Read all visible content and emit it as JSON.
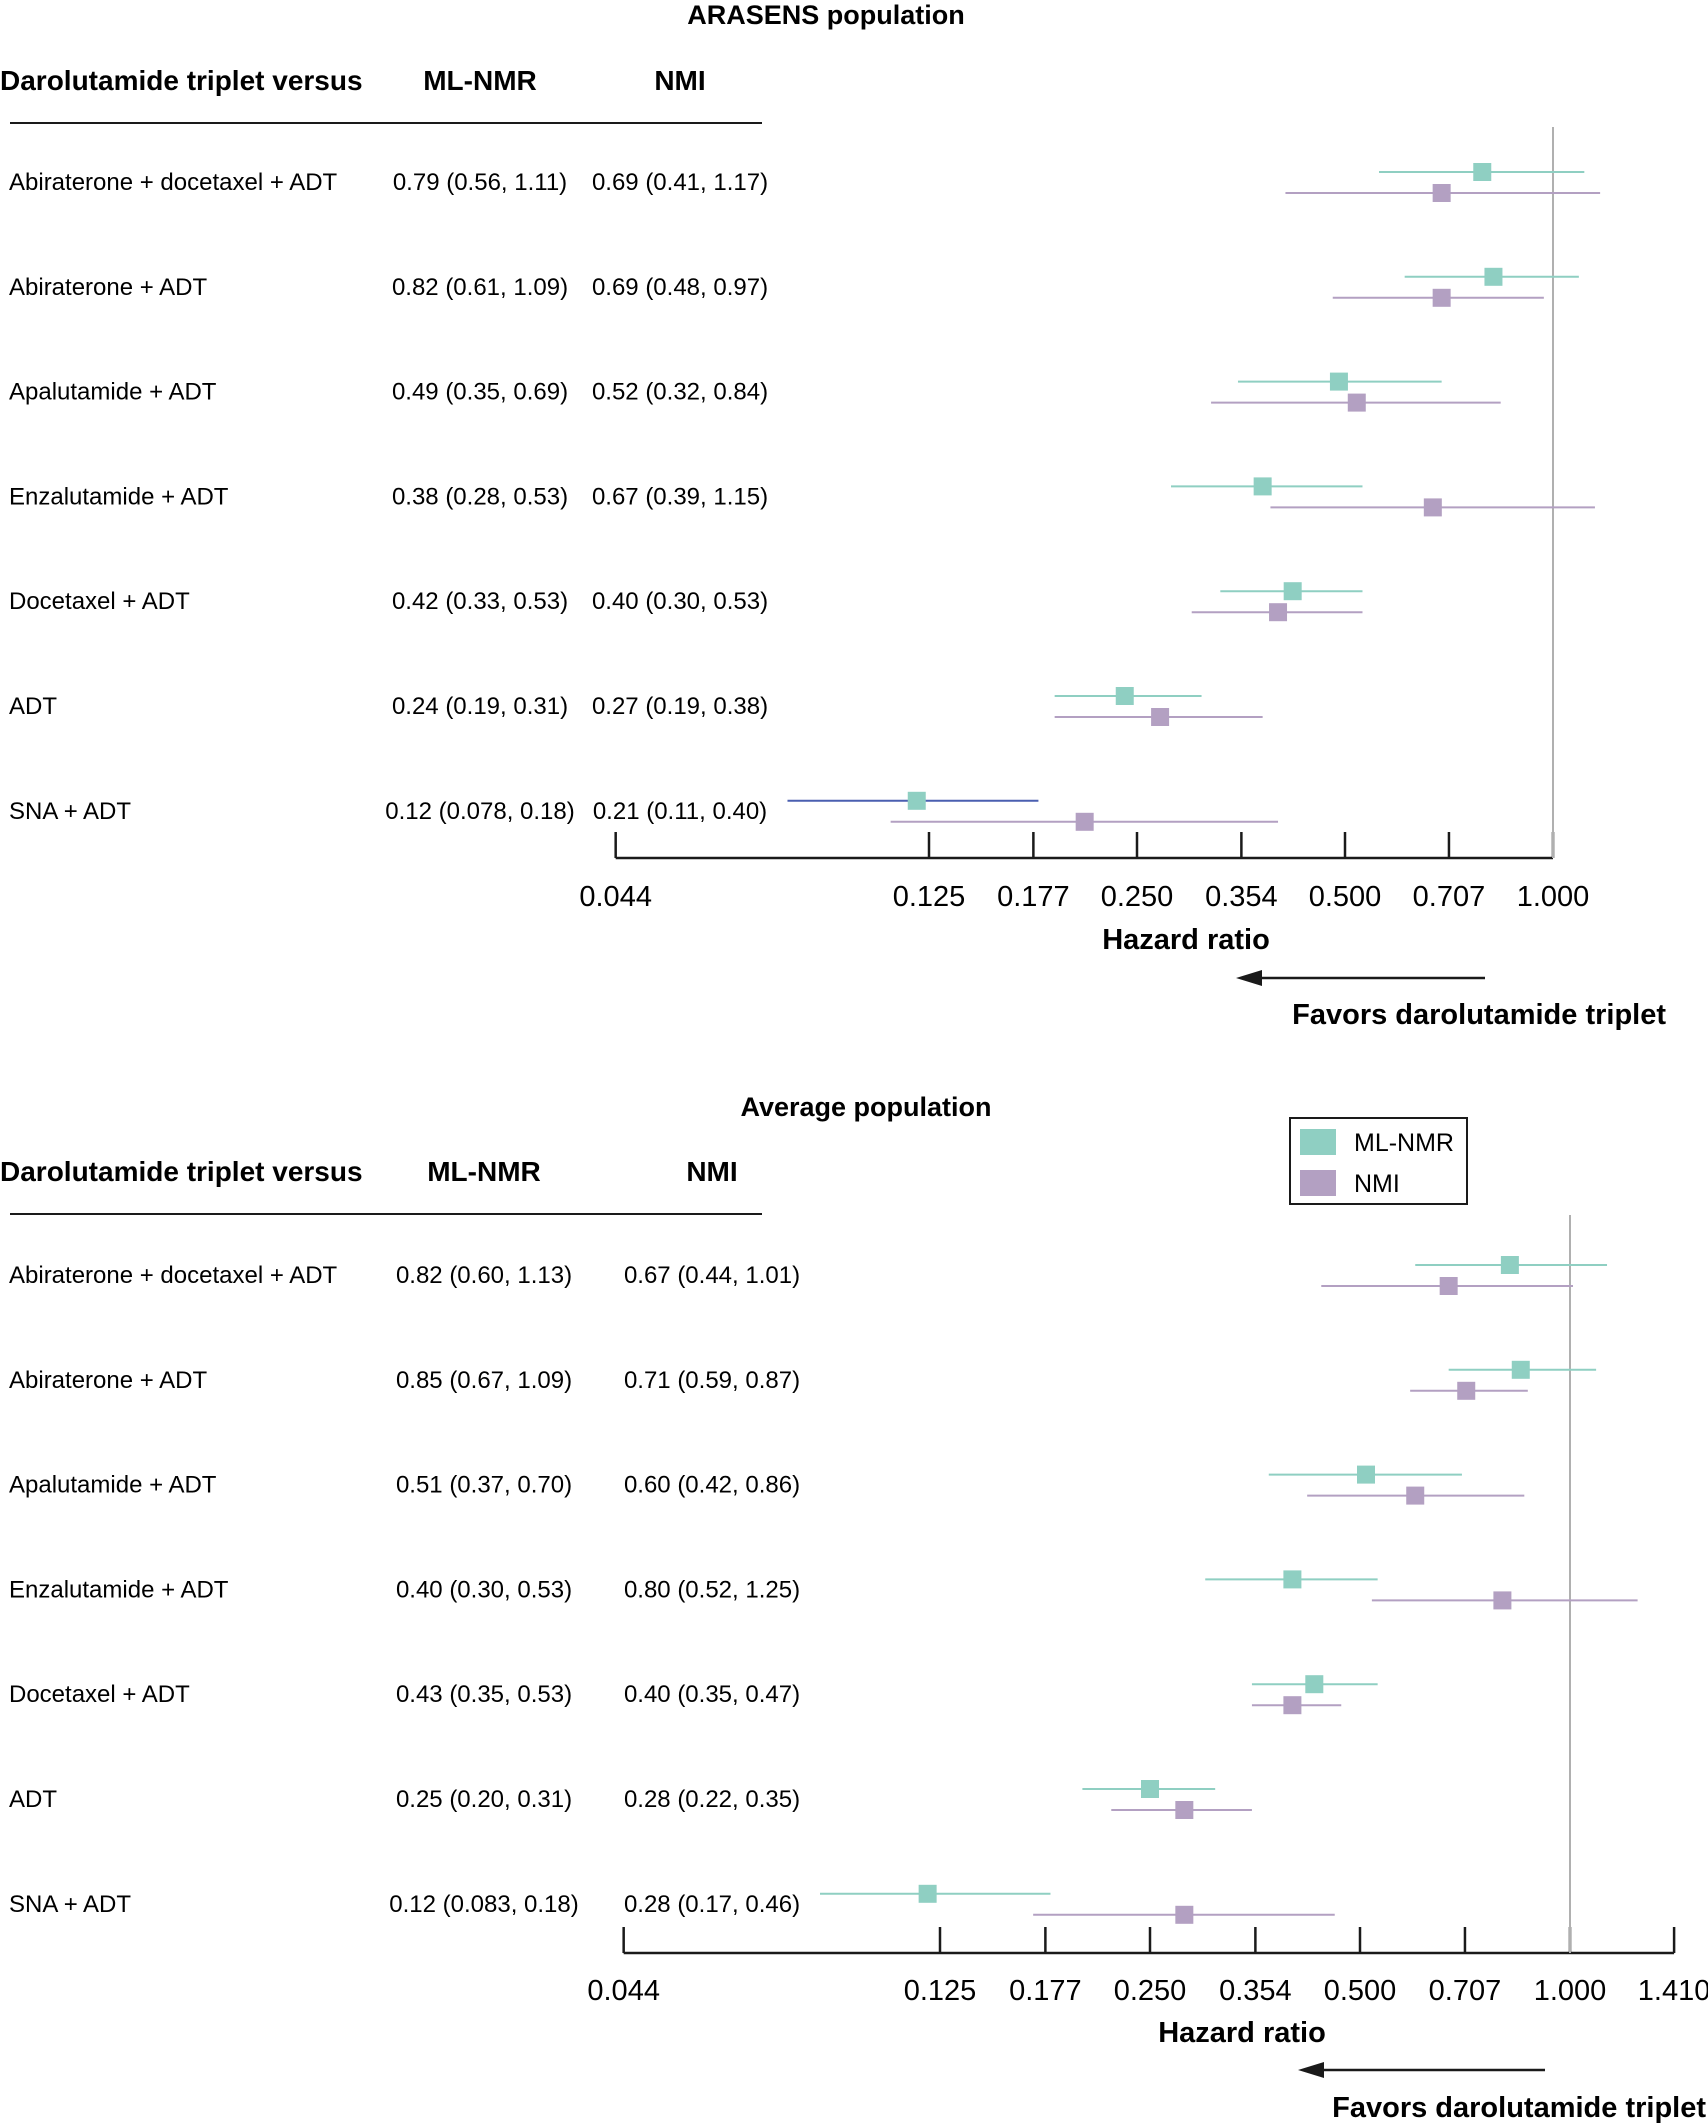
{
  "legend": {
    "colors": {
      "ML-NMR": "#8fcfc2",
      "NMI": "#b3a0c2"
    },
    "items": [
      {
        "label": "ML-NMR",
        "color": "#8fcfc2"
      },
      {
        "label": "NMI",
        "color": "#b3a0c2"
      }
    ]
  },
  "chart_data": [
    {
      "type": "forest",
      "title": "ARASENS population",
      "column_headers": [
        "Darolutamide triplet versus",
        "ML-NMR",
        "NMI"
      ],
      "xlabel": "Hazard ratio",
      "direction_label": "Favors darolutamide triplet",
      "x_scale": "log",
      "xlim": [
        0.044,
        1.0
      ],
      "x_ticks": [
        "0.044",
        "0.125",
        "0.177",
        "0.250",
        "0.354",
        "0.500",
        "0.707",
        "1.000"
      ],
      "reference_line": 1.0,
      "rows": [
        {
          "label": "Abiraterone + docetaxel + ADT",
          "ml_nmr": {
            "text": "0.79 (0.56, 1.11)",
            "hr": 0.79,
            "lo": 0.56,
            "hi": 1.11
          },
          "nmi": {
            "text": "0.69 (0.41, 1.17)",
            "hr": 0.69,
            "lo": 0.41,
            "hi": 1.17
          }
        },
        {
          "label": "Abiraterone + ADT",
          "ml_nmr": {
            "text": "0.82 (0.61, 1.09)",
            "hr": 0.82,
            "lo": 0.61,
            "hi": 1.09
          },
          "nmi": {
            "text": "0.69 (0.48, 0.97)",
            "hr": 0.69,
            "lo": 0.48,
            "hi": 0.97
          }
        },
        {
          "label": "Apalutamide + ADT",
          "ml_nmr": {
            "text": "0.49 (0.35, 0.69)",
            "hr": 0.49,
            "lo": 0.35,
            "hi": 0.69
          },
          "nmi": {
            "text": "0.52 (0.32, 0.84)",
            "hr": 0.52,
            "lo": 0.32,
            "hi": 0.84
          }
        },
        {
          "label": "Enzalutamide + ADT",
          "ml_nmr": {
            "text": "0.38 (0.28, 0.53)",
            "hr": 0.38,
            "lo": 0.28,
            "hi": 0.53
          },
          "nmi": {
            "text": "0.67 (0.39, 1.15)",
            "hr": 0.67,
            "lo": 0.39,
            "hi": 1.15
          }
        },
        {
          "label": "Docetaxel + ADT",
          "ml_nmr": {
            "text": "0.42 (0.33, 0.53)",
            "hr": 0.42,
            "lo": 0.33,
            "hi": 0.53
          },
          "nmi": {
            "text": "0.40 (0.30, 0.53)",
            "hr": 0.4,
            "lo": 0.3,
            "hi": 0.53
          }
        },
        {
          "label": "ADT",
          "ml_nmr": {
            "text": "0.24 (0.19, 0.31)",
            "hr": 0.24,
            "lo": 0.19,
            "hi": 0.31
          },
          "nmi": {
            "text": "0.27 (0.19, 0.38)",
            "hr": 0.27,
            "lo": 0.19,
            "hi": 0.38
          }
        },
        {
          "label": "SNA + ADT",
          "ml_nmr": {
            "text": "0.12 (0.078, 0.18)",
            "hr": 0.12,
            "lo": 0.078,
            "hi": 0.18,
            "line_color": "#4a5fb0"
          },
          "nmi": {
            "text": "0.21 (0.11, 0.40)",
            "hr": 0.21,
            "lo": 0.11,
            "hi": 0.4
          }
        }
      ]
    },
    {
      "type": "forest",
      "title": "Average population",
      "column_headers": [
        "Darolutamide triplet versus",
        "ML-NMR",
        "NMI"
      ],
      "xlabel": "Hazard ratio",
      "direction_label": "Favors darolutamide triplet",
      "x_scale": "log",
      "xlim": [
        0.044,
        1.41
      ],
      "x_ticks": [
        "0.044",
        "0.125",
        "0.177",
        "0.250",
        "0.354",
        "0.500",
        "0.707",
        "1.000",
        "1.410"
      ],
      "reference_line": 1.0,
      "legend_position": "top-right",
      "rows": [
        {
          "label": "Abiraterone + docetaxel + ADT",
          "ml_nmr": {
            "text": "0.82 (0.60, 1.13)",
            "hr": 0.82,
            "lo": 0.6,
            "hi": 1.13
          },
          "nmi": {
            "text": "0.67 (0.44, 1.01)",
            "hr": 0.67,
            "lo": 0.44,
            "hi": 1.01
          }
        },
        {
          "label": "Abiraterone + ADT",
          "ml_nmr": {
            "text": "0.85 (0.67, 1.09)",
            "hr": 0.85,
            "lo": 0.67,
            "hi": 1.09
          },
          "nmi": {
            "text": "0.71 (0.59, 0.87)",
            "hr": 0.71,
            "lo": 0.59,
            "hi": 0.87
          }
        },
        {
          "label": "Apalutamide + ADT",
          "ml_nmr": {
            "text": "0.51 (0.37, 0.70)",
            "hr": 0.51,
            "lo": 0.37,
            "hi": 0.7
          },
          "nmi": {
            "text": "0.60 (0.42, 0.86)",
            "hr": 0.6,
            "lo": 0.42,
            "hi": 0.86
          }
        },
        {
          "label": "Enzalutamide + ADT",
          "ml_nmr": {
            "text": "0.40 (0.30, 0.53)",
            "hr": 0.4,
            "lo": 0.3,
            "hi": 0.53
          },
          "nmi": {
            "text": "0.80 (0.52, 1.25)",
            "hr": 0.8,
            "lo": 0.52,
            "hi": 1.25
          }
        },
        {
          "label": "Docetaxel + ADT",
          "ml_nmr": {
            "text": "0.43 (0.35, 0.53)",
            "hr": 0.43,
            "lo": 0.35,
            "hi": 0.53
          },
          "nmi": {
            "text": "0.40 (0.35, 0.47)",
            "hr": 0.4,
            "lo": 0.35,
            "hi": 0.47
          }
        },
        {
          "label": "ADT",
          "ml_nmr": {
            "text": "0.25 (0.20, 0.31)",
            "hr": 0.25,
            "lo": 0.2,
            "hi": 0.31
          },
          "nmi": {
            "text": "0.28 (0.22, 0.35)",
            "hr": 0.28,
            "lo": 0.22,
            "hi": 0.35
          }
        },
        {
          "label": "SNA + ADT",
          "ml_nmr": {
            "text": "0.12 (0.083, 0.18)",
            "hr": 0.12,
            "lo": 0.083,
            "hi": 0.18
          },
          "nmi": {
            "text": "0.28 (0.17, 0.46)",
            "hr": 0.28,
            "lo": 0.17,
            "hi": 0.46
          }
        }
      ]
    }
  ]
}
